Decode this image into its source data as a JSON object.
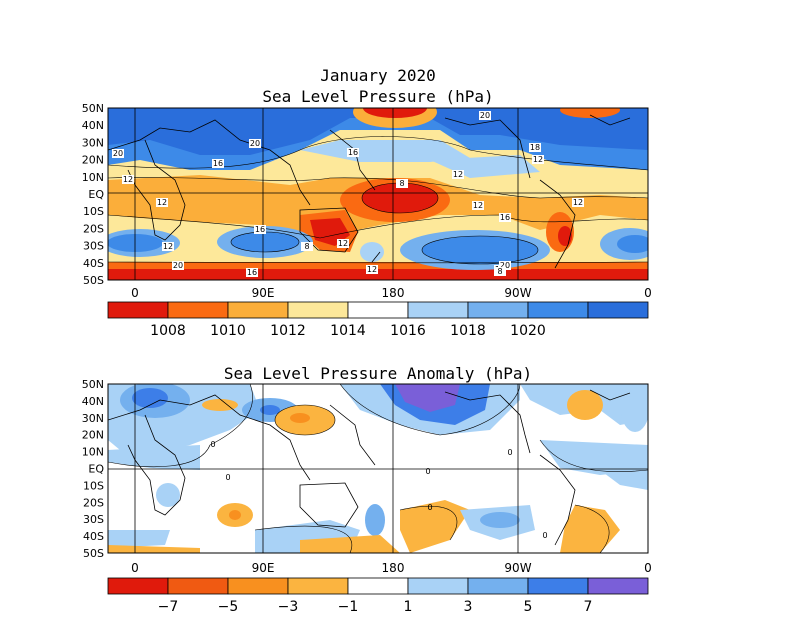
{
  "figure1": {
    "title": "January 2020",
    "subtitle": "Sea Level Pressure (hPa)",
    "lat_labels": [
      "50N",
      "40N",
      "30N",
      "20N",
      "10N",
      "EQ",
      "10S",
      "20S",
      "30S",
      "40S",
      "50S"
    ],
    "lon_labels": [
      "0",
      "90E",
      "180",
      "90W",
      "0"
    ],
    "contour_labels": [
      "20",
      "20",
      "16",
      "16",
      "20",
      "12",
      "8",
      "12",
      "12",
      "16",
      "12",
      "16",
      "12",
      "8",
      "12",
      "20",
      "16",
      "12",
      "12",
      "20",
      "18",
      "12",
      "12",
      "8"
    ],
    "colorbar_labels": [
      "1008",
      "1010",
      "1012",
      "1014",
      "1016",
      "1018",
      "1020"
    ],
    "colorbar_colors": [
      "#e01a0c",
      "#fa6a12",
      "#fbae3a",
      "#fde89a",
      "#ffffff",
      "#a9d2f6",
      "#74b0ee",
      "#3d8ae8",
      "#2a6edb"
    ]
  },
  "figure2": {
    "title": "Sea Level Pressure Anomaly (hPa)",
    "lat_labels": [
      "50N",
      "40N",
      "30N",
      "20N",
      "10N",
      "EQ",
      "10S",
      "20S",
      "30S",
      "40S",
      "50S"
    ],
    "lon_labels": [
      "0",
      "90E",
      "180",
      "90W",
      "0"
    ],
    "contour_labels": [
      "0",
      "0",
      "0",
      "0",
      "0",
      "0"
    ],
    "colorbar_labels": [
      "−7",
      "−5",
      "−3",
      "−1",
      "1",
      "3",
      "5",
      "7"
    ],
    "colorbar_colors": [
      "#e01a0c",
      "#f05a12",
      "#f8901f",
      "#fbb440",
      "#ffffff",
      "#a9d2f6",
      "#74b0ee",
      "#3d7ee8",
      "#7a5fd8"
    ]
  }
}
